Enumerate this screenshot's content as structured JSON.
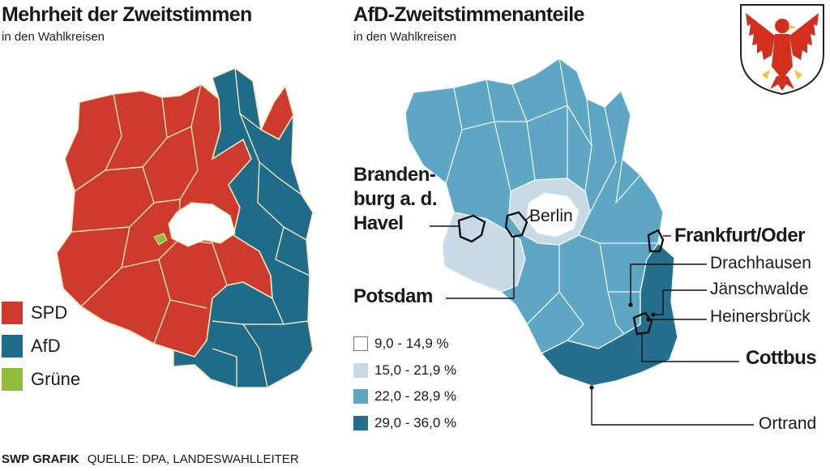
{
  "left": {
    "title": "Mehrheit der Zweitstimmen",
    "subtitle": "in den Wahlkreisen",
    "legend": [
      {
        "label": "SPD",
        "color": "#cf3a2e"
      },
      {
        "label": "AfD",
        "color": "#1f6b8a"
      },
      {
        "label": "Grüne",
        "color": "#8fbf3a"
      }
    ]
  },
  "right": {
    "title": "AfD-Zweitstimmenanteile",
    "subtitle": "in den Wahlkreisen",
    "legend": [
      {
        "label": "9,0 - 14,9 %",
        "color": "#ffffff"
      },
      {
        "label": "15,0 - 21,9 %",
        "color": "#c6d9e4"
      },
      {
        "label": "22,0 - 28,9 %",
        "color": "#5ea7c4"
      },
      {
        "label": "29,0 - 36,0 %",
        "color": "#236f8d"
      }
    ],
    "labels": {
      "brandenburg_l1": "Branden-",
      "brandenburg_l2": "burg a. d.",
      "brandenburg_l3": "Havel",
      "berlin": "Berlin",
      "potsdam": "Potsdam",
      "frankfurt": "Frankfurt/Oder",
      "drachhausen": "Drachhausen",
      "jaenschwalde": "Jänschwalde",
      "heinersbrueck": "Heinersbrück",
      "cottbus": "Cottbus",
      "ortrand": "Ortrand"
    }
  },
  "footer": {
    "credit": "SWP GRAFIK",
    "source": "QUELLE: DPA, LANDESWAHLLEITER"
  },
  "coat_of_arms": {
    "icon": "brandenburg-eagle-icon",
    "eagle_color": "#d32f1f",
    "beak_color": "#f2c230"
  }
}
